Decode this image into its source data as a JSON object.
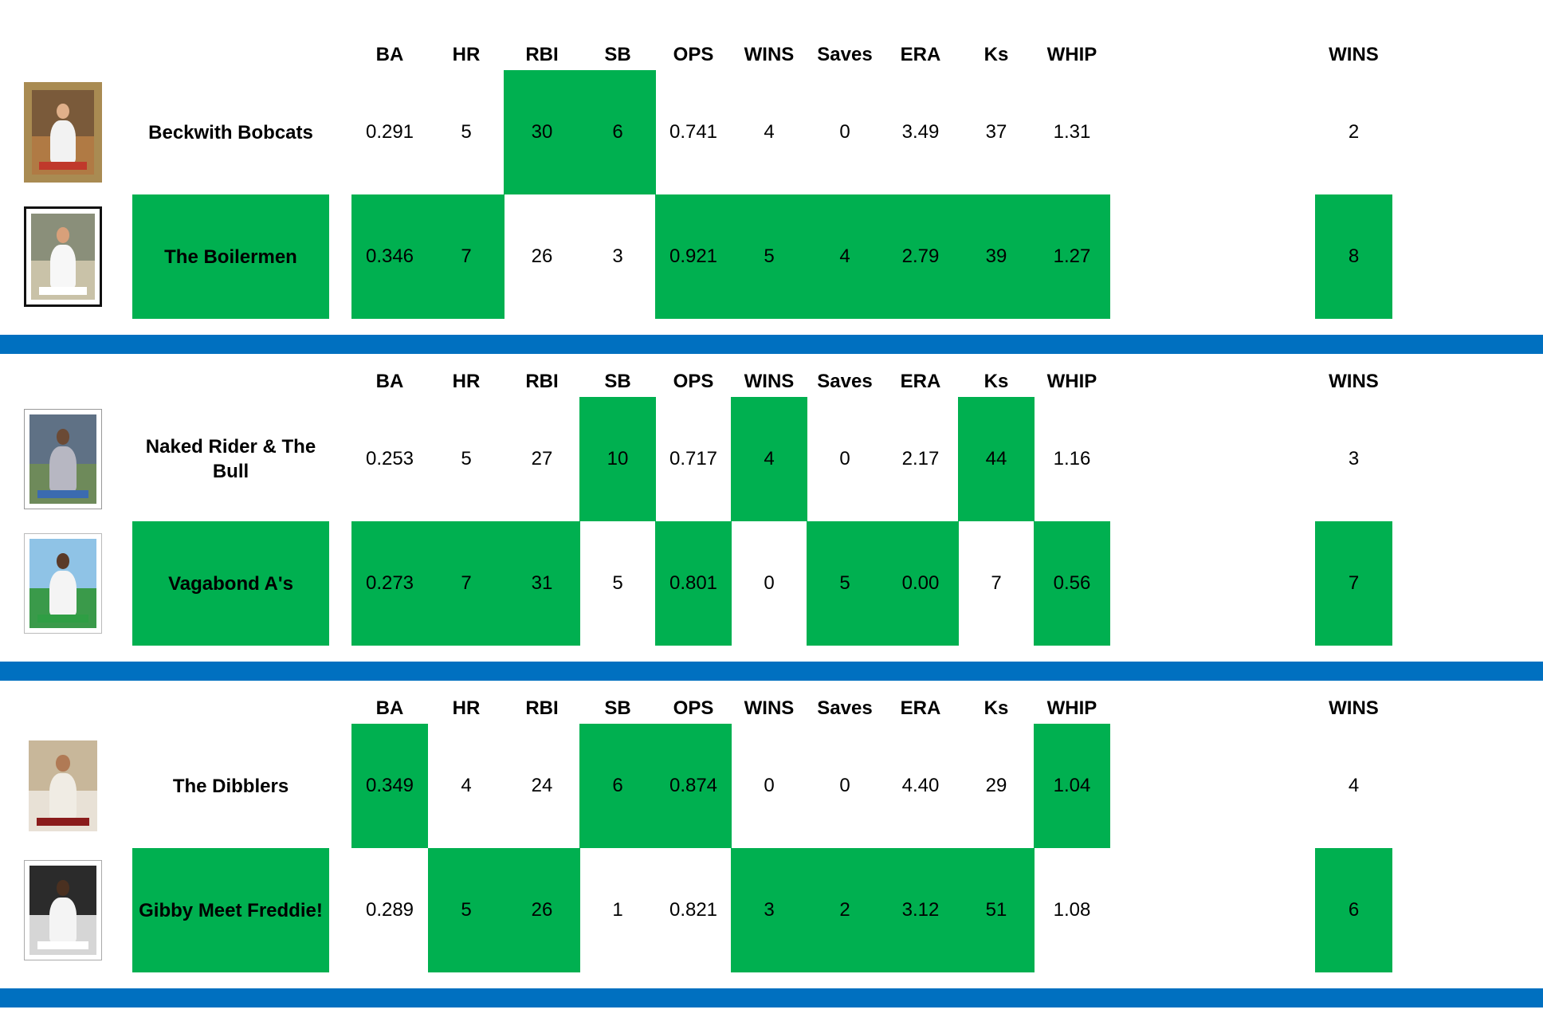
{
  "colors": {
    "win_fill": "#00b050",
    "divider": "#0070c0",
    "text": "#000000"
  },
  "headers": [
    "BA",
    "HR",
    "RBI",
    "SB",
    "OPS",
    "WINS",
    "Saves",
    "ERA",
    "Ks",
    "WHIP"
  ],
  "wins_header": "WINS",
  "matchups": [
    {
      "rows": [
        {
          "card": {
            "style": "topps-1987",
            "icon": "baseball-card-pitcher-icon"
          },
          "team": "Beckwith Bobcats",
          "team_win": false,
          "stats": [
            "0.291",
            "5",
            "30",
            "6",
            "0.741",
            "4",
            "0",
            "3.49",
            "37",
            "1.31"
          ],
          "stat_wins": [
            false,
            false,
            true,
            true,
            false,
            false,
            false,
            false,
            false,
            false
          ],
          "wins": "2",
          "wins_win": false
        },
        {
          "card": {
            "style": "upper-deck-framed",
            "icon": "baseball-card-batter-icon"
          },
          "team": "The Boilermen",
          "team_win": true,
          "stats": [
            "0.346",
            "7",
            "26",
            "3",
            "0.921",
            "5",
            "4",
            "2.79",
            "39",
            "1.27"
          ],
          "stat_wins": [
            true,
            true,
            false,
            false,
            true,
            true,
            true,
            true,
            true,
            true
          ],
          "wins": "8",
          "wins_win": true
        }
      ]
    },
    {
      "rows": [
        {
          "card": {
            "style": "fleer-white-border",
            "icon": "baseball-card-batter-icon"
          },
          "team": "Naked Rider & The Bull",
          "team_win": false,
          "stats": [
            "0.253",
            "5",
            "27",
            "10",
            "0.717",
            "4",
            "0",
            "2.17",
            "44",
            "1.16"
          ],
          "stat_wins": [
            false,
            false,
            false,
            true,
            false,
            true,
            false,
            false,
            true,
            false
          ],
          "wins": "3",
          "wins_win": false
        },
        {
          "card": {
            "style": "topps-1980-athletics",
            "icon": "baseball-card-batter-icon"
          },
          "team": "Vagabond A's",
          "team_win": true,
          "stats": [
            "0.273",
            "7",
            "31",
            "5",
            "0.801",
            "0",
            "5",
            "0.00",
            "7",
            "0.56"
          ],
          "stat_wins": [
            true,
            true,
            true,
            false,
            true,
            false,
            true,
            true,
            false,
            true
          ],
          "wins": "7",
          "wins_win": true
        }
      ]
    },
    {
      "rows": [
        {
          "card": {
            "style": "stadium-club-portrait",
            "icon": "baseball-card-portrait-icon"
          },
          "team": "The Dibblers",
          "team_win": false,
          "stats": [
            "0.349",
            "4",
            "24",
            "6",
            "0.874",
            "0",
            "0",
            "4.40",
            "29",
            "1.04"
          ],
          "stat_wins": [
            true,
            false,
            false,
            true,
            true,
            false,
            false,
            false,
            false,
            true
          ],
          "wins": "4",
          "wins_win": false
        },
        {
          "card": {
            "style": "upper-deck-white",
            "icon": "baseball-card-batter-icon"
          },
          "team": "Gibby Meet Freddie!",
          "team_win": true,
          "stats": [
            "0.289",
            "5",
            "26",
            "1",
            "0.821",
            "3",
            "2",
            "3.12",
            "51",
            "1.08"
          ],
          "stat_wins": [
            false,
            true,
            true,
            false,
            false,
            true,
            true,
            true,
            true,
            false
          ],
          "wins": "6",
          "wins_win": true
        }
      ]
    }
  ]
}
